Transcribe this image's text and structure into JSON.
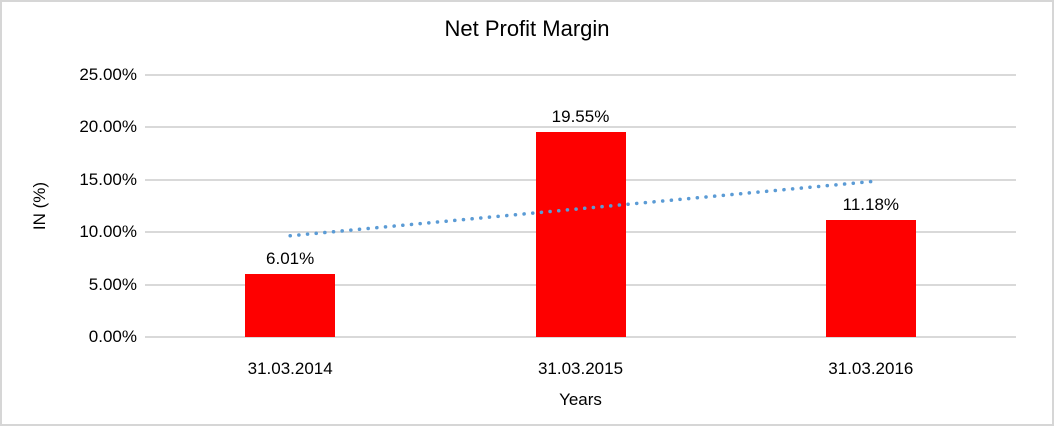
{
  "chart_data": {
    "type": "bar",
    "title": "Net Profit Margin",
    "xlabel": "Years",
    "ylabel": "IN (%)",
    "categories": [
      "31.03.2014",
      "31.03.2015",
      "31.03.2016"
    ],
    "values": [
      6.01,
      19.55,
      11.18
    ],
    "data_labels": [
      "6.01%",
      "19.55%",
      "11.18%"
    ],
    "ylim": [
      0,
      25
    ],
    "ytick_step": 5,
    "ytick_labels": [
      "0.00%",
      "5.00%",
      "10.00%",
      "15.00%",
      "20.00%",
      "25.00%"
    ],
    "grid": true,
    "legend": "none",
    "trendline": {
      "type": "linear",
      "style": "dotted",
      "points": [
        {
          "category_index": 0,
          "value": 9.66
        },
        {
          "category_index": 2,
          "value": 14.83
        }
      ]
    },
    "colors": {
      "bar": "#fe0000",
      "trendline": "#5b9bd5",
      "gridline": "#d9d9d9",
      "text": "#000000",
      "background": "#ffffff",
      "border": "#d6d6d6"
    }
  }
}
